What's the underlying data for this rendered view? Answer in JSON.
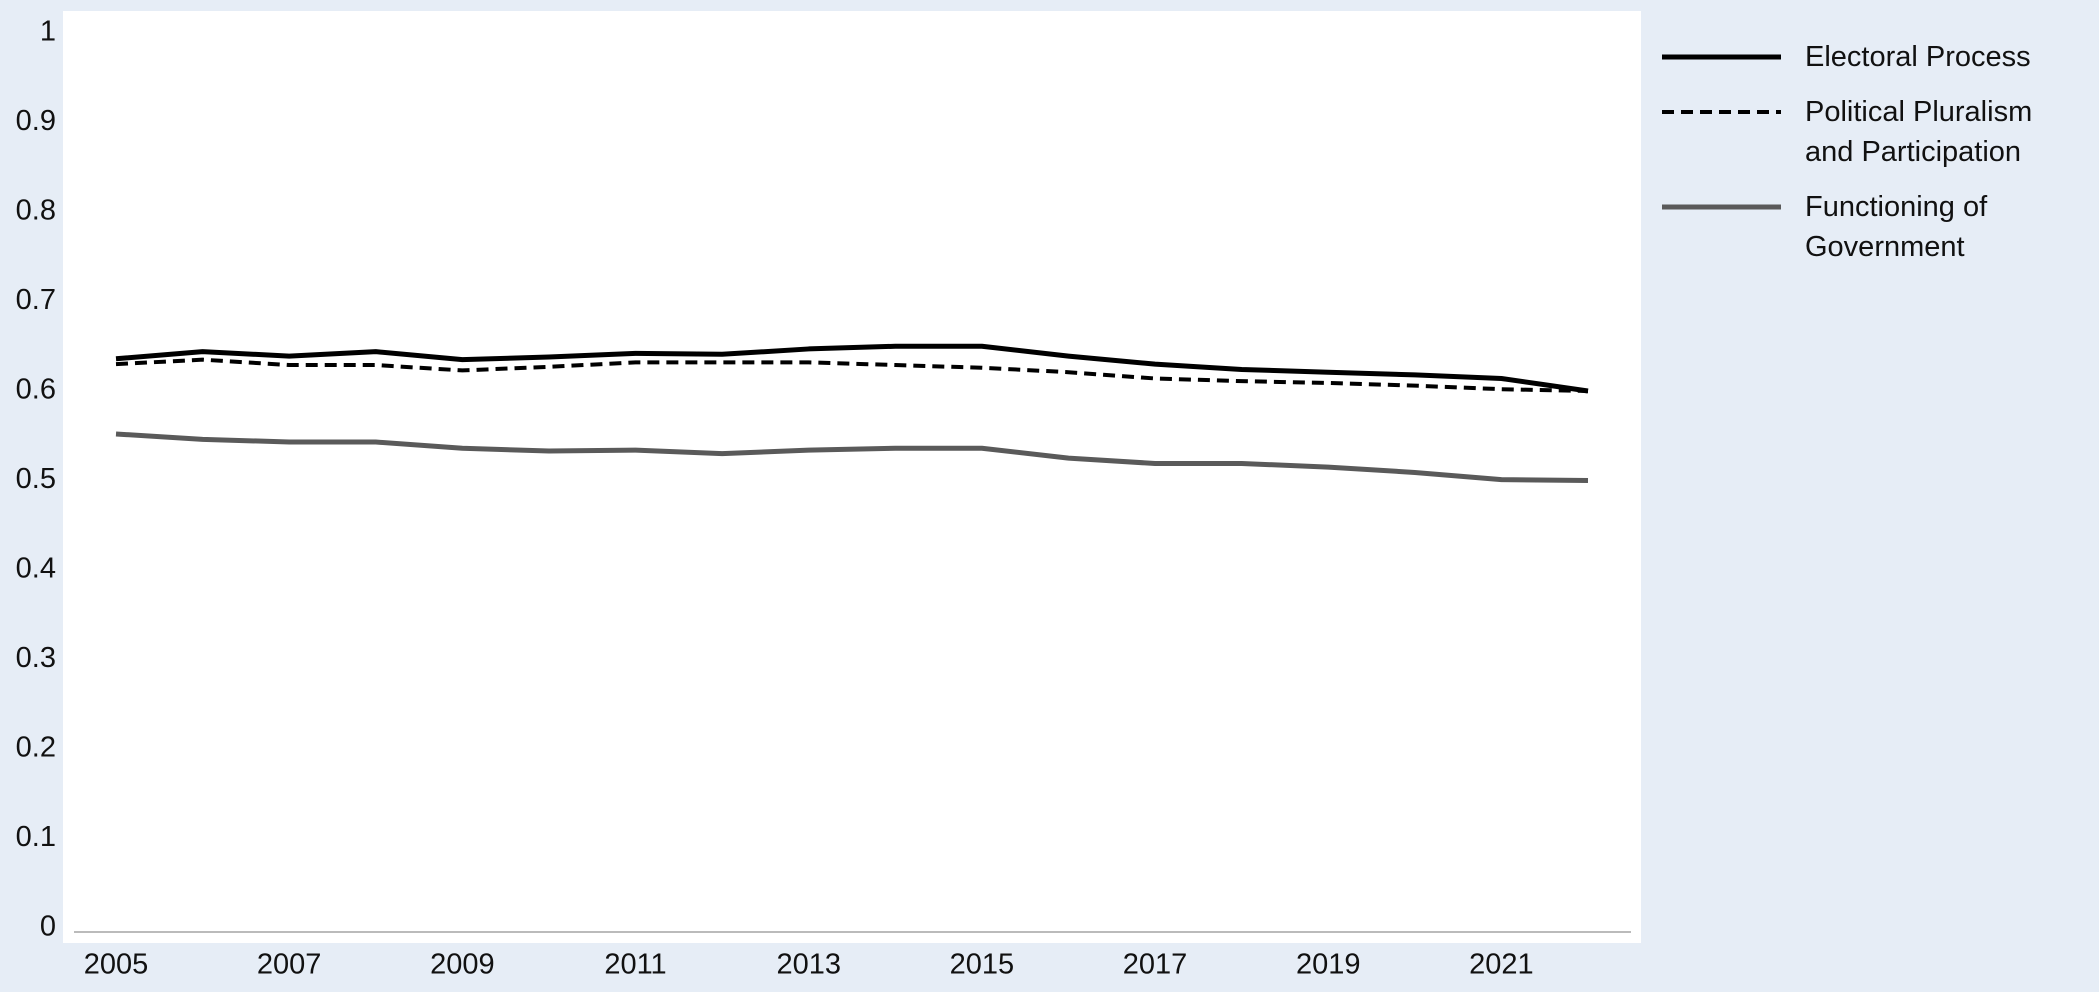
{
  "chart_data": {
    "type": "line",
    "x": [
      2005,
      2006,
      2007,
      2008,
      2009,
      2010,
      2011,
      2012,
      2013,
      2014,
      2015,
      2016,
      2017,
      2018,
      2019,
      2020,
      2021,
      2022
    ],
    "series": [
      {
        "name": "Electoral Process",
        "color": "#000000",
        "line_style": "solid",
        "values": [
          0.636,
          0.644,
          0.639,
          0.644,
          0.635,
          0.638,
          0.642,
          0.641,
          0.647,
          0.65,
          0.65,
          0.639,
          0.63,
          0.624,
          0.621,
          0.618,
          0.614,
          0.6
        ]
      },
      {
        "name": "Political Pluralism and Participation",
        "color": "#000000",
        "line_style": "dashed",
        "values": [
          0.63,
          0.635,
          0.629,
          0.629,
          0.623,
          0.627,
          0.632,
          0.632,
          0.632,
          0.629,
          0.626,
          0.621,
          0.614,
          0.611,
          0.609,
          0.606,
          0.602,
          0.6
        ]
      },
      {
        "name": "Functioning of Government",
        "color": "#5a5a5a",
        "line_style": "solid",
        "values": [
          0.552,
          0.546,
          0.543,
          0.543,
          0.536,
          0.533,
          0.534,
          0.53,
          0.534,
          0.536,
          0.536,
          0.525,
          0.519,
          0.519,
          0.515,
          0.509,
          0.501,
          0.5
        ]
      }
    ],
    "xlim": [
      2005,
      2022
    ],
    "xticks": [
      2005,
      2007,
      2009,
      2011,
      2013,
      2015,
      2017,
      2019,
      2021
    ],
    "ylim": [
      0,
      1
    ],
    "yticks": [
      0,
      0.1,
      0.2,
      0.3,
      0.4,
      0.5,
      0.6,
      0.7,
      0.8,
      0.9,
      1
    ],
    "grid": false,
    "legend": "right"
  }
}
